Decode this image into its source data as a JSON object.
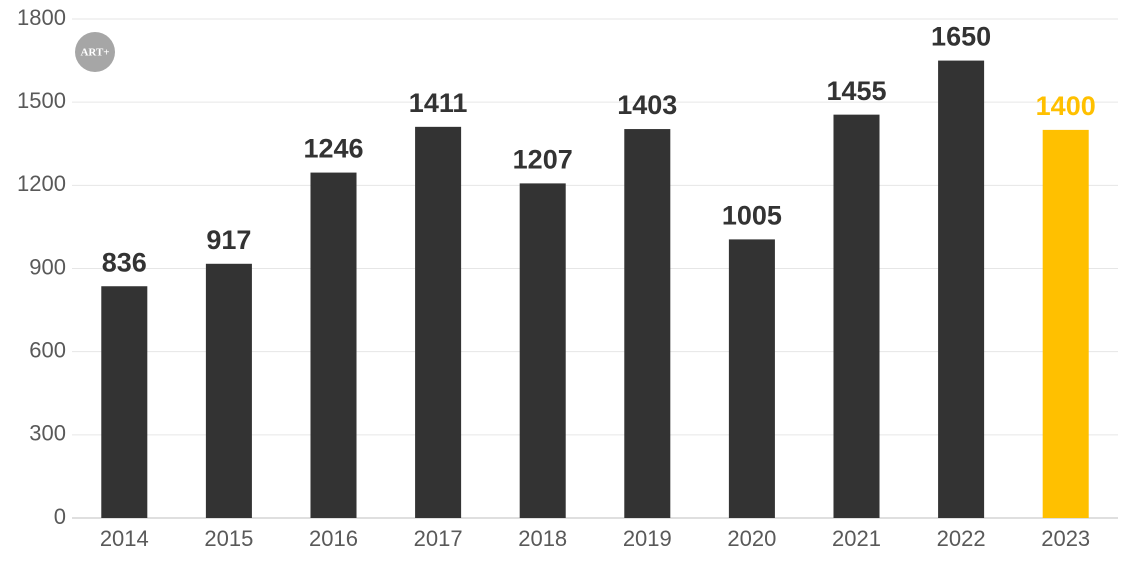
{
  "chart_data": {
    "type": "bar",
    "watermark": "ART+",
    "categories": [
      "2014",
      "2015",
      "2016",
      "2017",
      "2018",
      "2019",
      "2020",
      "2021",
      "2022",
      "2023"
    ],
    "values": [
      836,
      917,
      1246,
      1411,
      1207,
      1403,
      1005,
      1455,
      1650,
      1400
    ],
    "colors": [
      "#333333",
      "#333333",
      "#333333",
      "#333333",
      "#333333",
      "#333333",
      "#333333",
      "#333333",
      "#333333",
      "#ffc000"
    ],
    "ylim": [
      0,
      1800
    ],
    "yticks": [
      0,
      300,
      600,
      900,
      1200,
      1500,
      1800
    ],
    "grid": true
  }
}
